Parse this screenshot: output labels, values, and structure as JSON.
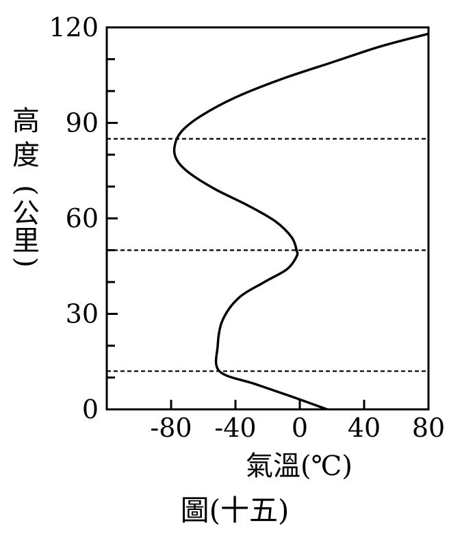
{
  "chart_data": {
    "type": "line",
    "title": "",
    "caption": "圖(十五)",
    "xlabel": "氣溫(℃)",
    "ylabel_chars": [
      "高",
      "度",
      "(",
      "公",
      "里",
      ")"
    ],
    "xlim": [
      -120,
      80
    ],
    "ylim": [
      0,
      120
    ],
    "x_ticks": [
      -80,
      -40,
      0,
      40,
      80
    ],
    "x_tick_labels": [
      "-80",
      "-40",
      "0",
      "40",
      "80"
    ],
    "y_ticks": [
      0,
      30,
      60,
      90,
      120
    ],
    "y_tick_labels": [
      "0",
      "30",
      "60",
      "90",
      "120"
    ],
    "y_minor_ticks": [
      10,
      20,
      40,
      50,
      70,
      80,
      100,
      110
    ],
    "boundary_lines_km": [
      12,
      50,
      85
    ],
    "grid": false,
    "series": [
      {
        "points": [
          [
            17,
            0
          ],
          [
            -5,
            4
          ],
          [
            -28,
            8
          ],
          [
            -50,
            12
          ],
          [
            -51,
            20
          ],
          [
            -48,
            28
          ],
          [
            -38,
            35
          ],
          [
            -22,
            40
          ],
          [
            -8,
            44
          ],
          [
            -2,
            48
          ],
          [
            -2,
            50
          ],
          [
            -5,
            54
          ],
          [
            -15,
            59
          ],
          [
            -32,
            64
          ],
          [
            -52,
            69
          ],
          [
            -68,
            74
          ],
          [
            -76,
            78
          ],
          [
            -78,
            82
          ],
          [
            -74,
            87
          ],
          [
            -62,
            92
          ],
          [
            -40,
            98
          ],
          [
            -10,
            104
          ],
          [
            20,
            109
          ],
          [
            50,
            114
          ],
          [
            80,
            118
          ]
        ]
      }
    ]
  }
}
